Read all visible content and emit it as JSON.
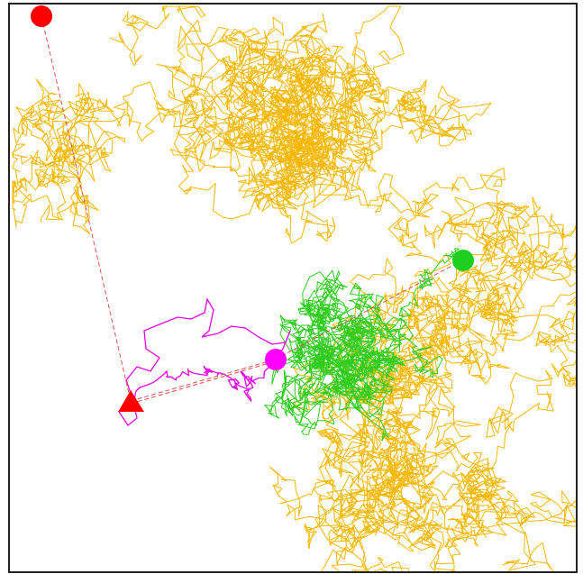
{
  "figure": {
    "description_free": true,
    "background": "#ffffff",
    "border_color": "#222222"
  },
  "colors": {
    "orange_walk": "#f5b800",
    "green_walk": "#2ecc1f",
    "magenta_walk": "#e600e6",
    "red_marker": "#ff0000",
    "green_marker": "#1fcf1f",
    "magenta_marker": "#ff00ff",
    "link_line": "#e05050"
  },
  "elements": {
    "walks": [
      "orange",
      "green",
      "magenta"
    ],
    "markers": [
      "red-circle",
      "green-circle",
      "magenta-circle",
      "red-triangle"
    ],
    "links": [
      "red-circle-to-triangle",
      "triangle-to-magenta",
      "magenta-to-green"
    ]
  }
}
